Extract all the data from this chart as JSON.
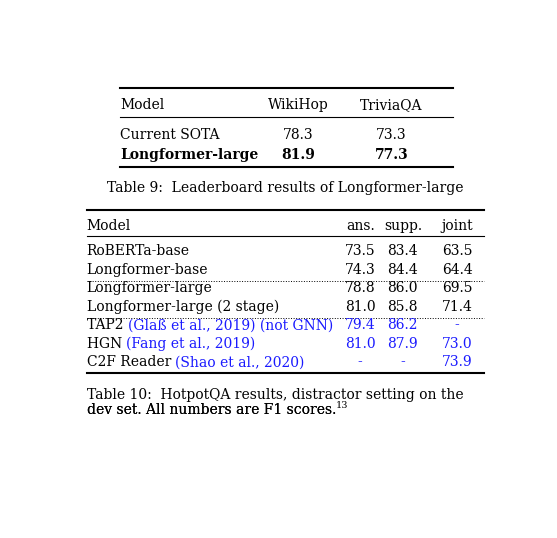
{
  "bg_color": "#ffffff",
  "table9": {
    "headers": [
      "Model",
      "WikiHop",
      "TriviaQA"
    ],
    "rows": [
      [
        "Current SOTA",
        "78.3",
        "73.3",
        false
      ],
      [
        "Longformer-large",
        "81.9",
        "77.3",
        true
      ]
    ],
    "caption": "Table 9:  Leaderboard results of Longformer-large"
  },
  "table10": {
    "headers": [
      "Model",
      "ans.",
      "supp.",
      "joint"
    ],
    "rows": [
      [
        "RoBERTa-base",
        "73.5",
        "83.4",
        "63.5"
      ],
      [
        "Longformer-base",
        "74.3",
        "84.4",
        "64.4"
      ],
      [
        "Longformer-large",
        "78.8",
        "86.0",
        "69.5"
      ],
      [
        "Longformer-large (2 stage)",
        "81.0",
        "85.8",
        "71.4"
      ],
      [
        "TAP2 (Glaß et al., 2019) (not GNN)",
        "79.4",
        "86.2",
        "-"
      ],
      [
        "HGN (Fang et al., 2019)",
        "81.0",
        "87.9",
        "73.0"
      ],
      [
        "C2F Reader (Shao et al., 2020)",
        "-",
        "-",
        "73.9"
      ]
    ],
    "black_prefix": [
      "TAP2 ",
      "HGN ",
      "C2F Reader "
    ],
    "blue_cite": [
      "(Glaß et al., 2019) (not GNN)",
      "(Fang et al., 2019)",
      "(Shao et al., 2020)"
    ],
    "dotted_after": [
      1,
      3
    ],
    "blue_rows": [
      4,
      5,
      6
    ],
    "caption_line1": "Table 10:  HotpotQA results, distractor setting on the",
    "caption_line2": "dev set. All numbers are F1 scores.",
    "caption_superscript": "13"
  }
}
